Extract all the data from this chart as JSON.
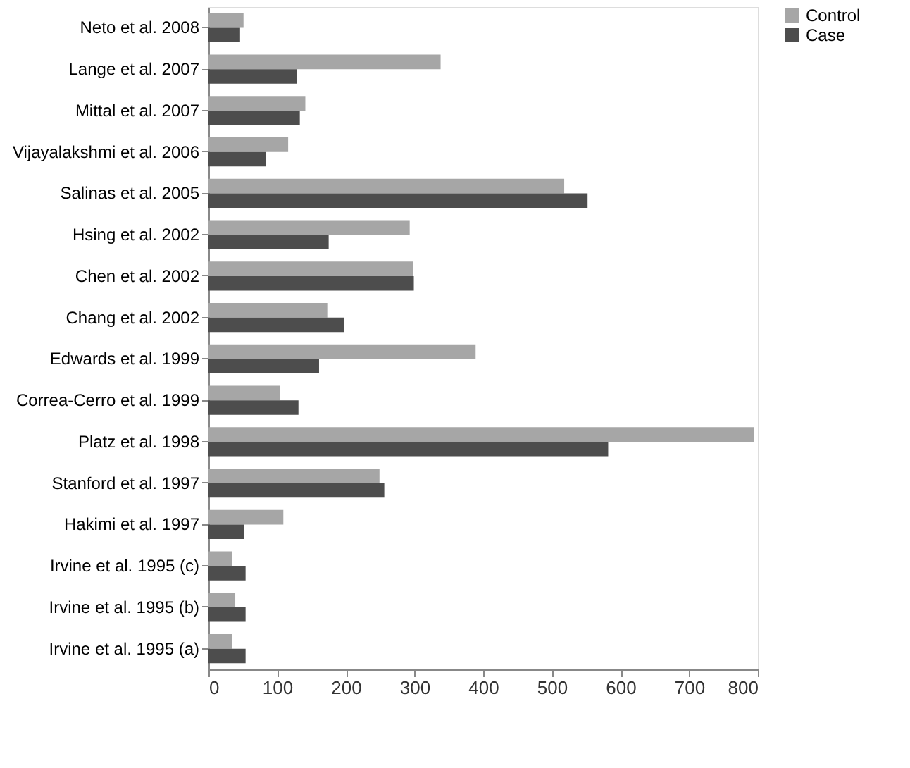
{
  "chart_data": {
    "type": "bar",
    "orientation": "horizontal",
    "categories": [
      "Neto et al. 2008",
      "Lange et al. 2007",
      "Mittal et al. 2007",
      "Vijayalakshmi  et al. 2006",
      "Salinas et al. 2005",
      "Hsing et al. 2002",
      "Chen et al. 2002",
      "Chang et al. 2002",
      "Edwards et al. 1999",
      "Correa-Cerro et al. 1999",
      "Platz et al. 1998",
      "Stanford et al. 1997",
      "Hakimi et al. 1997",
      "Irvine et al. 1995 (c)",
      "Irvine et al. 1995 (b)",
      "Irvine et al. 1995 (a)"
    ],
    "series": [
      {
        "name": "Control",
        "color": "#a6a6a6",
        "values": [
          51,
          338,
          141,
          116,
          518,
          293,
          298,
          173,
          389,
          104,
          794,
          249,
          109,
          34,
          39,
          34
        ]
      },
      {
        "name": "Case",
        "color": "#4d4d4d",
        "values": [
          46,
          129,
          133,
          84,
          552,
          175,
          299,
          197,
          161,
          131,
          582,
          256,
          52,
          54,
          54,
          54
        ]
      }
    ],
    "xlim": [
      0,
      800
    ],
    "xticks": [
      0,
      100,
      200,
      300,
      400,
      500,
      600,
      700,
      800
    ],
    "grid": false,
    "legend": "right"
  }
}
